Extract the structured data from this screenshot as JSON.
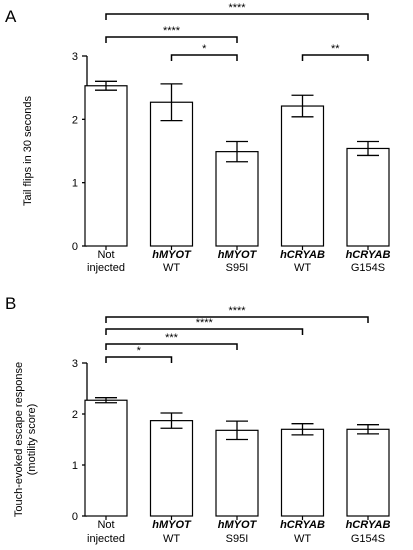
{
  "chart_data": [
    {
      "type": "bar",
      "panel_label": "A",
      "ylabel": "Tail flips in 30 seconds",
      "xlabel": "",
      "ylim": [
        0,
        3
      ],
      "yticks": [
        "0",
        "1",
        "2",
        "3"
      ],
      "grid": false,
      "categories": [
        {
          "line1": "Not",
          "line2": "injected",
          "italic": false
        },
        {
          "line1": "hMYOT",
          "line2": "WT",
          "italic": true
        },
        {
          "line1": "hMYOT",
          "line2": "S95I",
          "italic": true
        },
        {
          "line1": "hCRYAB",
          "line2": "WT",
          "italic": true
        },
        {
          "line1": "hCRYAB",
          "line2": "G154S",
          "italic": true
        }
      ],
      "values": [
        2.53,
        2.27,
        1.49,
        2.21,
        1.54
      ],
      "errors": [
        0.07,
        0.29,
        0.16,
        0.17,
        0.11
      ],
      "significance": [
        {
          "from": 0,
          "to": 4,
          "label": "****"
        },
        {
          "from": 0,
          "to": 2,
          "label": "****"
        },
        {
          "from": 1,
          "to": 2,
          "label": "*"
        },
        {
          "from": 3,
          "to": 4,
          "label": "**"
        }
      ]
    },
    {
      "type": "bar",
      "panel_label": "B",
      "ylabel": "Touch-evoked escape response",
      "ylabel2": "(motility score)",
      "xlabel": "",
      "ylim": [
        0,
        3
      ],
      "yticks": [
        "0",
        "1",
        "2",
        "3"
      ],
      "grid": false,
      "categories": [
        {
          "line1": "Not",
          "line2": "injected",
          "italic": false
        },
        {
          "line1": "hMYOT",
          "line2": "WT",
          "italic": true
        },
        {
          "line1": "hMYOT",
          "line2": "S95I",
          "italic": true
        },
        {
          "line1": "hCRYAB",
          "line2": "WT",
          "italic": true
        },
        {
          "line1": "hCRYAB",
          "line2": "G154S",
          "italic": true
        }
      ],
      "values": [
        2.27,
        1.87,
        1.68,
        1.7,
        1.7
      ],
      "errors": [
        0.05,
        0.15,
        0.18,
        0.11,
        0.09
      ],
      "significance": [
        {
          "from": 0,
          "to": 4,
          "label": "****"
        },
        {
          "from": 0,
          "to": 3,
          "label": "****"
        },
        {
          "from": 0,
          "to": 2,
          "label": "***"
        },
        {
          "from": 0,
          "to": 1,
          "label": "*"
        }
      ]
    }
  ]
}
